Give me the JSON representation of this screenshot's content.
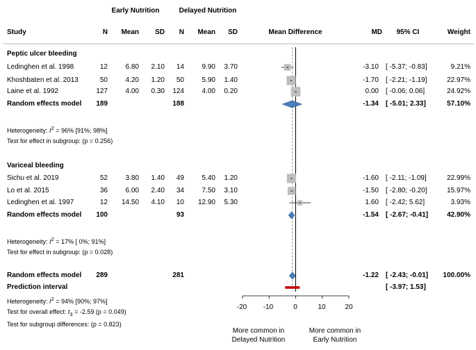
{
  "chart_data": {
    "type": "forest",
    "title": "",
    "xlabel_left": "More common in Delayed Nutrition",
    "xlabel_right": "More common in Early Nutrition",
    "x_axis_label": "Mean Difference",
    "xlim": [
      -20,
      20
    ],
    "x_ticks": [
      "-20",
      "-10",
      "0",
      "10",
      "20"
    ],
    "x_tick_values": [
      -20,
      -10,
      0,
      10,
      20
    ],
    "group_headers": {
      "early": "Early Nutrition",
      "delayed": "Delayed Nutrition"
    },
    "columns": {
      "study": "Study",
      "n1": "N",
      "mean1": "Mean",
      "sd1": "SD",
      "n2": "N",
      "mean2": "Mean",
      "sd2": "SD",
      "md": "MD",
      "ci": "95% CI",
      "weight": "Weight"
    },
    "subgroups": [
      {
        "name": "Peptic ulcer bleeding",
        "studies": [
          {
            "study": "Ledinghen et al. 1998",
            "n1": "12",
            "mean1": "6.80",
            "sd1": "2.10",
            "n2": "14",
            "mean2": "9.90",
            "sd2": "3.70",
            "md_text": "-3.10",
            "ci_text": "[ -5.37; -0.83]",
            "weight_text": "9.21%",
            "md": -3.1,
            "lo": -5.37,
            "hi": -0.83,
            "weight": 9.21
          },
          {
            "study": "Khoshbaten et al. 2013",
            "n1": "50",
            "mean1": "4.20",
            "sd1": "1.20",
            "n2": "50",
            "mean2": "5.90",
            "sd2": "1.40",
            "md_text": "-1.70",
            "ci_text": "[ -2.21; -1.19]",
            "weight_text": "22.97%",
            "md": -1.7,
            "lo": -2.21,
            "hi": -1.19,
            "weight": 22.97
          },
          {
            "study": "Laine et al. 1992",
            "n1": "127",
            "mean1": "4.00",
            "sd1": "0.30",
            "n2": "124",
            "mean2": "4.00",
            "sd2": "0.20",
            "md_text": "0.00",
            "ci_text": "[ -0.06; 0.06]",
            "weight_text": "24.92%",
            "md": 0.0,
            "lo": -0.06,
            "hi": 0.06,
            "weight": 24.92
          }
        ],
        "pooled": {
          "label": "Random effects model",
          "n1": "189",
          "n2": "188",
          "md_text": "-1.34",
          "ci_text": "[ -5.01; 2.33]",
          "weight_text": "57.10%",
          "md": -1.34,
          "lo": -5.01,
          "hi": 2.33
        },
        "heterogeneity_prefix": "Heterogeneity: ",
        "heterogeneity_stat": "I",
        "heterogeneity_value": " = 96% [91%; 98%]",
        "effect_test_prefix": "Test for effect in subgroup: ",
        "effect_test_value": "(p = 0.256)"
      },
      {
        "name": "Variceal bleeding",
        "studies": [
          {
            "study": "Sichu et al. 2019",
            "n1": "52",
            "mean1": "3.80",
            "sd1": "1.40",
            "n2": "49",
            "mean2": "5.40",
            "sd2": "1.20",
            "md_text": "-1.60",
            "ci_text": "[ -2.11; -1.09]",
            "weight_text": "22.99%",
            "md": -1.6,
            "lo": -2.11,
            "hi": -1.09,
            "weight": 22.99
          },
          {
            "study": "Lo et al. 2015",
            "n1": "36",
            "mean1": "6.00",
            "sd1": "2.40",
            "n2": "34",
            "mean2": "7.50",
            "sd2": "3.10",
            "md_text": "-1.50",
            "ci_text": "[ -2.80; -0.20]",
            "weight_text": "15.97%",
            "md": -1.5,
            "lo": -2.8,
            "hi": -0.2,
            "weight": 15.97
          },
          {
            "study": "Ledinghen et al. 1997",
            "n1": "12",
            "mean1": "14.50",
            "sd1": "4.10",
            "n2": "10",
            "mean2": "12.90",
            "sd2": "5.30",
            "md_text": "1.60",
            "ci_text": "[ -2.42; 5.62]",
            "weight_text": "3.93%",
            "md": 1.6,
            "lo": -2.42,
            "hi": 5.62,
            "weight": 3.93
          }
        ],
        "pooled": {
          "label": "Random effects model",
          "n1": "100",
          "n2": "93",
          "md_text": "-1.54",
          "ci_text": "[ -2.67; -0.41]",
          "weight_text": "42.90%",
          "md": -1.54,
          "lo": -2.67,
          "hi": -0.41
        },
        "heterogeneity_prefix": "Heterogeneity: ",
        "heterogeneity_stat": "I",
        "heterogeneity_value": " = 17% [ 0%; 91%]",
        "effect_test_prefix": "Test for effect in subgroup: ",
        "effect_test_value": "(p = 0.028)"
      }
    ],
    "overall": {
      "label": "Random effects model",
      "n1": "289",
      "n2": "281",
      "md_text": "-1.22",
      "ci_text": "[ -2.43; -0.01]",
      "weight_text": "100.00%",
      "md": -1.22,
      "lo": -2.43,
      "hi": -0.01
    },
    "prediction": {
      "label": "Prediction interval",
      "ci_text": "[ -3.97; 1.53]",
      "lo": -3.97,
      "hi": 1.53
    },
    "footer": {
      "heterogeneity_prefix": "Heterogeneity: ",
      "heterogeneity_stat": "I",
      "heterogeneity_value": " = 94% [90%; 97%]",
      "overall_test_prefix": "Test for overall effect: ",
      "overall_test_stat": "t",
      "overall_test_value": " = -2.59 (p = 0.049)",
      "subgroup_test_prefix": "Test for subgroup differences: ",
      "subgroup_test_value": "(p = 0.823)"
    },
    "colors": {
      "diamond": "#4a7ebb",
      "diamond_edge": "#2f5a8f",
      "square": "#bfbfbf",
      "prediction": "#c00000",
      "line": "#000000",
      "ref": "#808080"
    }
  }
}
